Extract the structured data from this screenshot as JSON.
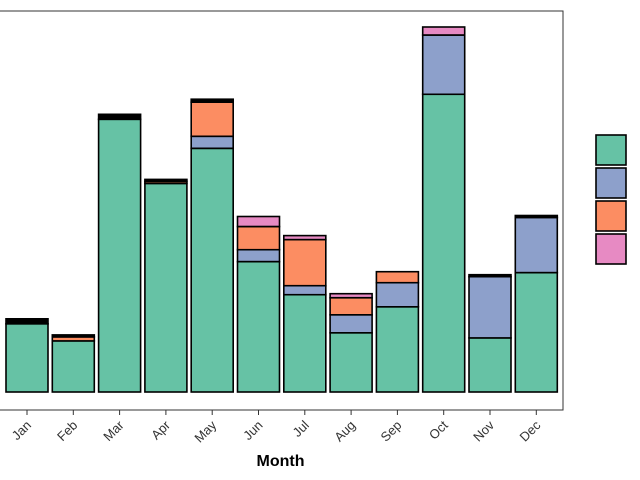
{
  "chart_data": {
    "type": "bar",
    "stacked": true,
    "title": "",
    "xlabel": "Month",
    "ylabel": "",
    "categories": [
      "Jan",
      "Feb",
      "Mar",
      "Apr",
      "May",
      "Jun",
      "Jul",
      "Aug",
      "Sep",
      "Oct",
      "Nov",
      "Dec"
    ],
    "ylim": [
      0,
      380
    ],
    "grid": false,
    "legend_position": "right",
    "series": [
      {
        "color": "#66c2a5",
        "values": [
          68,
          51,
          272,
          208,
          243,
          130,
          97,
          59,
          85,
          297,
          54,
          119
        ]
      },
      {
        "color": "#8da0cb",
        "values": [
          0,
          0,
          0,
          0,
          12,
          12,
          9,
          18,
          24,
          59,
          61,
          55
        ]
      },
      {
        "color": "#fc8d62",
        "values": [
          0,
          4,
          0,
          2,
          34,
          23,
          46,
          17,
          11,
          0,
          0,
          0
        ]
      },
      {
        "color": "#e78ac3",
        "values": [
          0,
          0,
          0,
          0,
          0,
          10,
          4,
          4,
          0,
          8,
          0,
          0
        ]
      },
      {
        "color": "#000000",
        "values": [
          5,
          2,
          5,
          2,
          3,
          0,
          0,
          0,
          0,
          0,
          2,
          2
        ]
      }
    ]
  }
}
